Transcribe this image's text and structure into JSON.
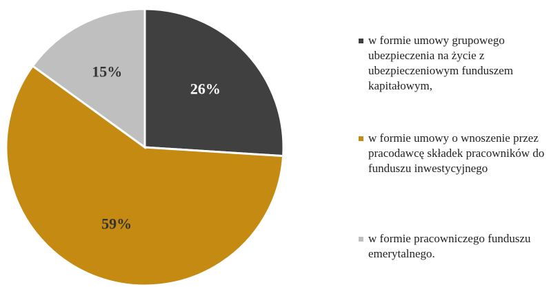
{
  "chart_data": {
    "type": "pie",
    "categories": [
      "w formie umowy grupowego ubezpieczenia na życie z ubezpieczeniowym funduszem kapitałowym,",
      "w formie umowy o wnoszenie przez pracodawcę składek pracowników do funduszu inwestycyjnego",
      "w formie pracowniczego funduszu emerytalnego."
    ],
    "values": [
      26,
      59,
      15
    ],
    "value_labels": [
      "26%",
      "59%",
      "15%"
    ],
    "colors": [
      "#404040",
      "#c48a12",
      "#bfbfbf"
    ],
    "legend": "right"
  }
}
